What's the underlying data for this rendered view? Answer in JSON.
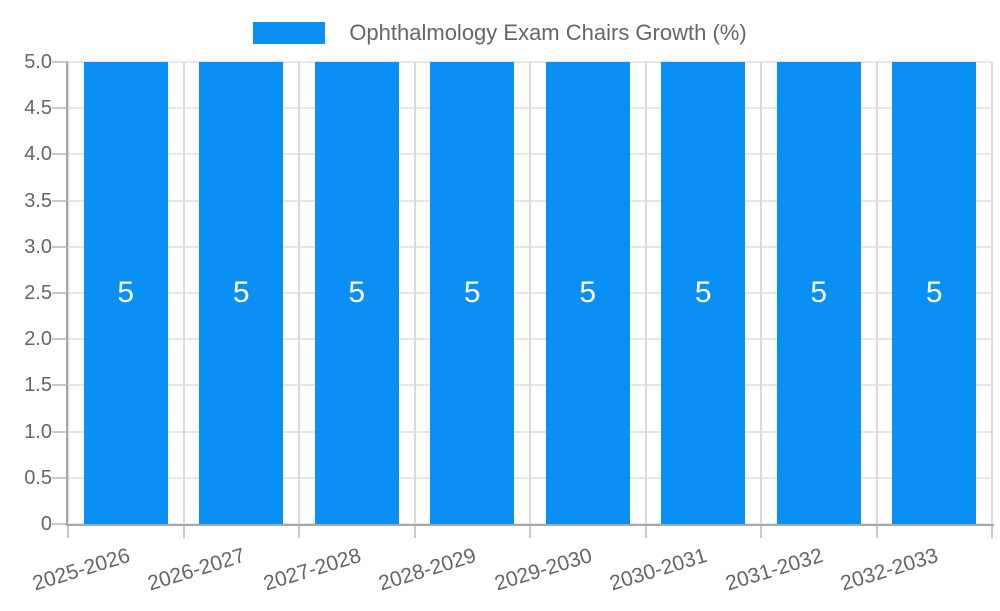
{
  "page": {
    "background": "#ffffff"
  },
  "legend": {
    "label": "Ophthalmology Exam Chairs Growth (%)"
  },
  "chart_data": {
    "type": "bar",
    "title": "Ophthalmology Exam Chairs Growth (%)",
    "legend_position": "top",
    "grid": true,
    "categories": [
      "2025-2026",
      "2026-2027",
      "2027-2028",
      "2028-2029",
      "2029-2030",
      "2030-2031",
      "2031-2032",
      "2032-2033"
    ],
    "series": [
      {
        "name": "Ophthalmology Exam Chairs Growth (%)",
        "values": [
          5,
          5,
          5,
          5,
          5,
          5,
          5,
          5
        ]
      }
    ],
    "bar_value_labels": [
      "5",
      "5",
      "5",
      "5",
      "5",
      "5",
      "5",
      "5"
    ],
    "xlabel": "",
    "ylabel": "",
    "ylim": [
      0,
      5
    ],
    "yticks": [
      {
        "value": 0,
        "label": "0"
      },
      {
        "value": 0.5,
        "label": "0.5"
      },
      {
        "value": 1,
        "label": "1.0"
      },
      {
        "value": 1.5,
        "label": "1.5"
      },
      {
        "value": 2,
        "label": "2.0"
      },
      {
        "value": 2.5,
        "label": "2.5"
      },
      {
        "value": 3,
        "label": "3.0"
      },
      {
        "value": 3.5,
        "label": "3.5"
      },
      {
        "value": 4,
        "label": "4.0"
      },
      {
        "value": 4.5,
        "label": "4.5"
      },
      {
        "value": 5,
        "label": "5.0"
      }
    ],
    "colors": {
      "bar": "#0A8FF5",
      "bar_label": "#ffffff",
      "grid_h": "#e6e6e6",
      "grid_v": "#dcdcdc",
      "tick": "#c9c9c9",
      "axis": "#a8a8a8",
      "txt": "#666666"
    }
  }
}
